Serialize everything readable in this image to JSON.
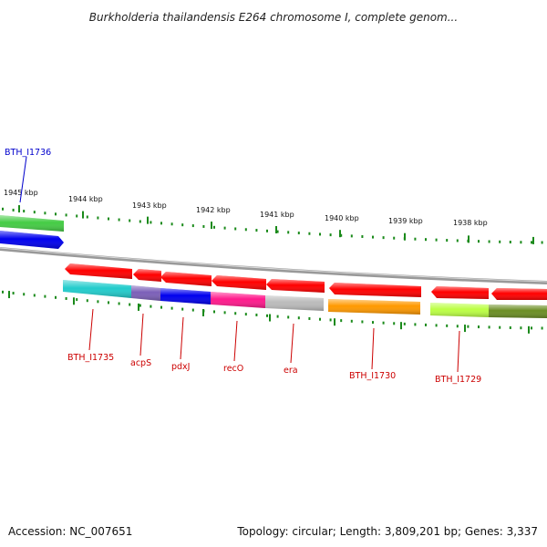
{
  "title": "Burkholderia thailandensis E264 chromosome I, complete genom...",
  "footer": {
    "accession": "Accession: NC_007651",
    "topology": "Topology: circular; Length: 3,809,201 bp; Genes: 3,337"
  },
  "ticks": [
    "1945 kbp",
    "1944 kbp",
    "1943 kbp",
    "1942 kbp",
    "1941 kbp",
    "1940 kbp",
    "1939 kbp",
    "1938 kbp"
  ],
  "genes_top": [
    {
      "label": "BTH_I1736",
      "color": "#0000cc"
    }
  ],
  "genes_bottom": [
    {
      "label": "BTH_I1735",
      "color": "#cc0000"
    },
    {
      "label": "acpS",
      "color": "#cc0000"
    },
    {
      "label": "pdxJ",
      "color": "#cc0000"
    },
    {
      "label": "recO",
      "color": "#cc0000"
    },
    {
      "label": "era",
      "color": "#cc0000"
    },
    {
      "label": "BTH_I1730",
      "color": "#cc0000"
    },
    {
      "label": "BTH_I1729",
      "color": "#cc0000"
    }
  ],
  "colors": {
    "strand_arrow": "#ff0000",
    "tick_marks": "#1a8a1a",
    "backbone": "#888888",
    "cog_cyan": "#22cccc",
    "cog_purple": "#7b5fb8",
    "cog_blue": "#0000ee",
    "cog_pink": "#ff1a8c",
    "cog_grey": "#bbbbbb",
    "cog_orange": "#ff9900",
    "cog_lime": "#bbff44",
    "cog_olive": "#6b8e23",
    "cog_green": "#44cc44"
  }
}
